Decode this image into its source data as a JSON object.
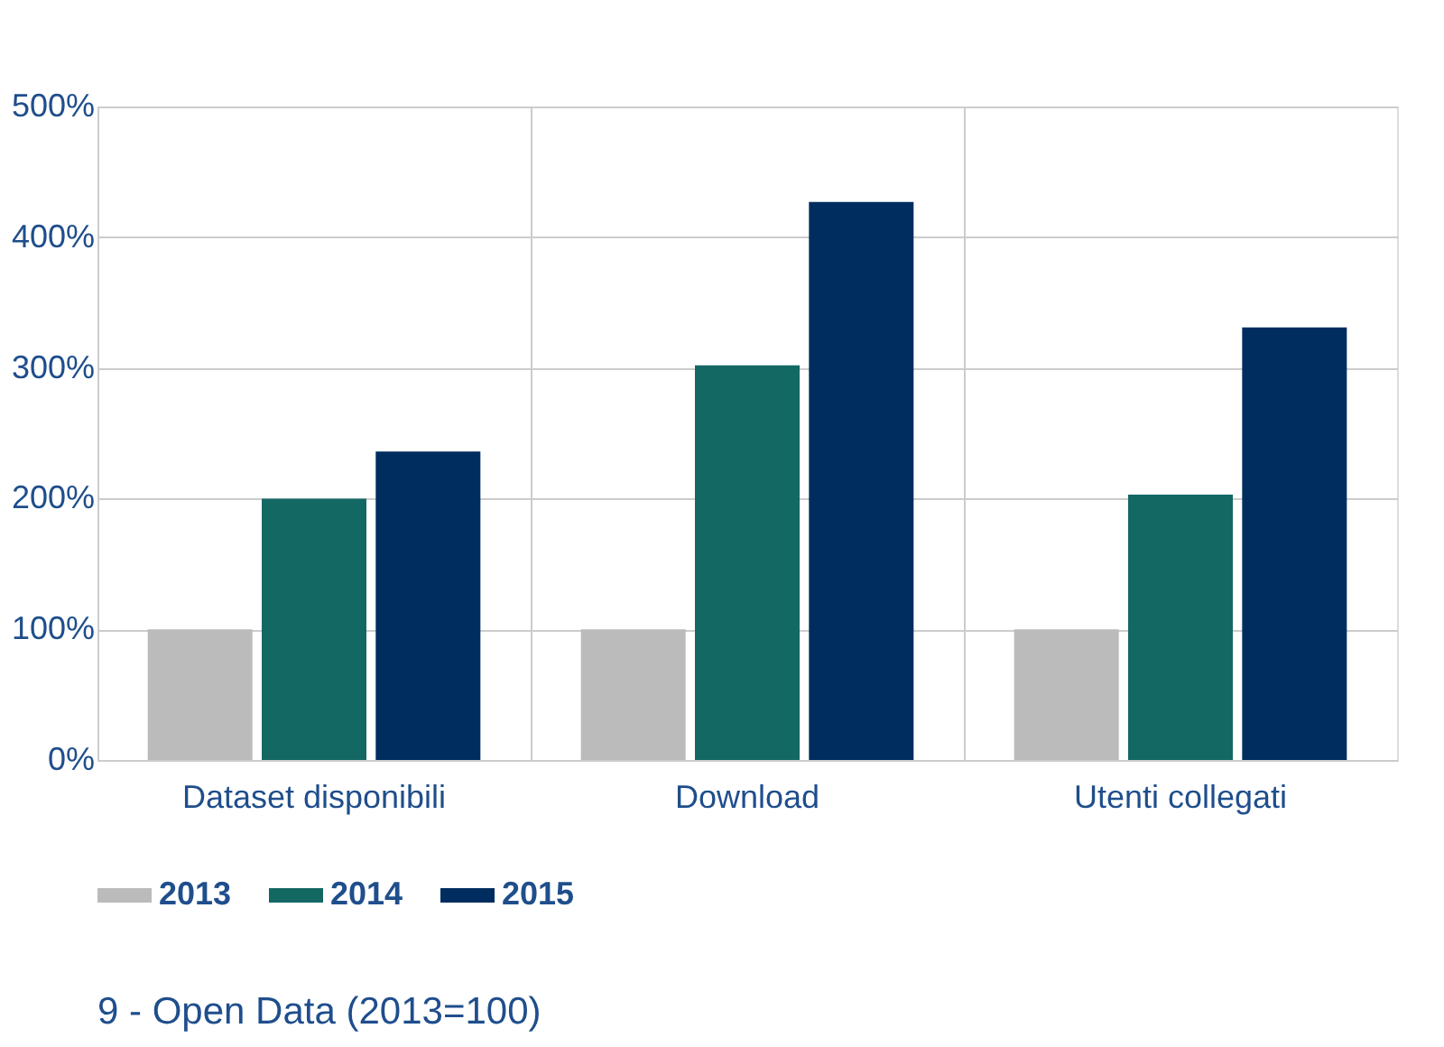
{
  "chart_data": {
    "type": "bar",
    "title": "9 - Open Data (2013=100)",
    "categories": [
      "Dataset disponibili",
      "Download",
      "Utenti collegati"
    ],
    "series": [
      {
        "name": "2013",
        "color": "#bbbbbb",
        "values": [
          100,
          100,
          100
        ]
      },
      {
        "name": "2014",
        "color": "#146864",
        "values": [
          200,
          302,
          203
        ]
      },
      {
        "name": "2015",
        "color": "#002d5f",
        "values": [
          236,
          427,
          331
        ]
      }
    ],
    "ylim": [
      0,
      500
    ],
    "yticks": [
      {
        "value": 0,
        "label": "0%"
      },
      {
        "value": 100,
        "label": "100%"
      },
      {
        "value": 200,
        "label": "200%"
      },
      {
        "value": 300,
        "label": "300%"
      },
      {
        "value": 400,
        "label": "400%"
      },
      {
        "value": 500,
        "label": "500%"
      }
    ],
    "grid": true,
    "legend": "bottom left"
  }
}
